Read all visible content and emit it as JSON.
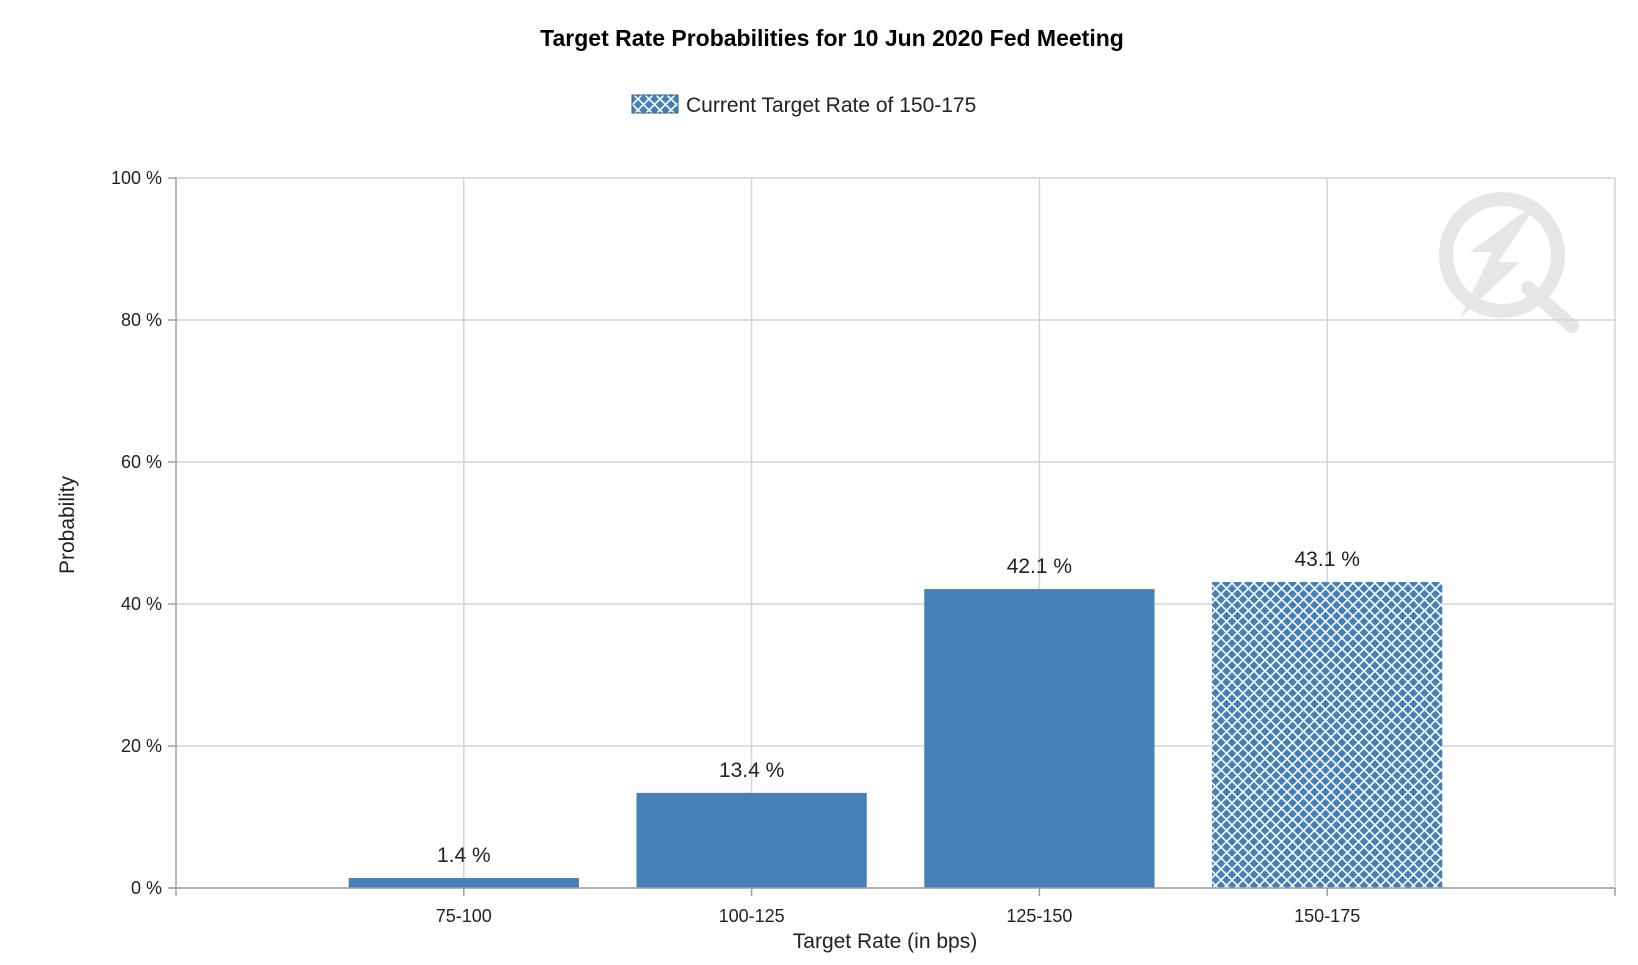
{
  "chart_data": {
    "type": "bar",
    "title": "Target Rate Probabilities for 10 Jun 2020 Fed Meeting",
    "xlabel": "Target Rate (in bps)",
    "ylabel": "Probability",
    "categories": [
      "75-100",
      "100-125",
      "125-150",
      "150-175"
    ],
    "values": [
      1.4,
      13.4,
      42.1,
      43.1
    ],
    "data_labels": [
      "1.4 %",
      "13.4 %",
      "42.1 %",
      "43.1 %"
    ],
    "highlight_index": 3,
    "ylim": [
      0,
      100
    ],
    "yticks": [
      0,
      20,
      40,
      60,
      80,
      100
    ],
    "ytick_labels": [
      "0 %",
      "20 %",
      "40 %",
      "60 %",
      "80 %",
      "100 %"
    ],
    "grid": true,
    "legend": {
      "placement": "top-center",
      "entries": [
        {
          "label": "Current Target Rate of 150-175",
          "pattern": "crosshatch"
        }
      ]
    },
    "colors": {
      "bar": "#4580b6",
      "highlight_hatch": "#ffffff",
      "grid": "#d4d4d4",
      "axis": "#a0a0a0"
    },
    "watermark_icon": "quikstrike-logo-icon"
  }
}
